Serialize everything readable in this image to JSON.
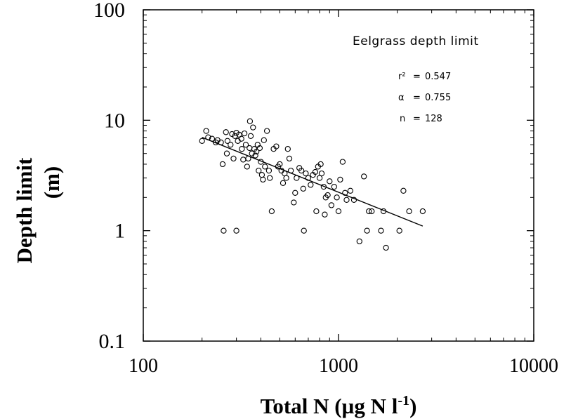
{
  "chart_data": {
    "type": "scatter",
    "xlabel": "Total N (µg N l",
    "xlabel_sup": "-1",
    "xlabel_close": ")",
    "ylabel_line1": "Depth limit",
    "ylabel_line2": "(m)",
    "xscale": "log",
    "yscale": "log",
    "xlim": [
      100,
      10000
    ],
    "ylim": [
      0.1,
      100
    ],
    "xticks": [
      100,
      1000,
      10000
    ],
    "xtick_labels": [
      "100",
      "1000",
      "10000"
    ],
    "yticks": [
      0.1,
      1,
      10,
      100
    ],
    "ytick_labels": [
      "0.1",
      "1",
      "10",
      "100"
    ],
    "grid": false,
    "annotation": {
      "title": "Eelgrass depth limit",
      "r2_label": "r²",
      "r2_value": "0.547",
      "a_label": "α",
      "a_value": "0.755",
      "n_label": "n",
      "n_value": "128"
    },
    "fit_line": {
      "x": [
        200,
        2700
      ],
      "y": [
        7.0,
        1.1
      ]
    },
    "points": [
      [
        200,
        6.5
      ],
      [
        210,
        8.0
      ],
      [
        215,
        7.0
      ],
      [
        225,
        6.8
      ],
      [
        235,
        6.3
      ],
      [
        240,
        6.6
      ],
      [
        250,
        6.3
      ],
      [
        255,
        4.0
      ],
      [
        258,
        1.0
      ],
      [
        265,
        7.8
      ],
      [
        270,
        6.5
      ],
      [
        268,
        5.0
      ],
      [
        280,
        6.0
      ],
      [
        285,
        7.5
      ],
      [
        290,
        4.5
      ],
      [
        295,
        7.2
      ],
      [
        300,
        7.7
      ],
      [
        300,
        1.0
      ],
      [
        305,
        6.5
      ],
      [
        310,
        7.4
      ],
      [
        318,
        6.8
      ],
      [
        320,
        5.5
      ],
      [
        325,
        4.4
      ],
      [
        330,
        7.6
      ],
      [
        335,
        6.0
      ],
      [
        340,
        3.8
      ],
      [
        345,
        4.5
      ],
      [
        350,
        5.6
      ],
      [
        352,
        9.8
      ],
      [
        355,
        7.2
      ],
      [
        360,
        5.0
      ],
      [
        365,
        8.6
      ],
      [
        370,
        5.5
      ],
      [
        375,
        4.8
      ],
      [
        380,
        5.2
      ],
      [
        385,
        6.0
      ],
      [
        390,
        3.5
      ],
      [
        395,
        5.6
      ],
      [
        400,
        4.2
      ],
      [
        405,
        3.2
      ],
      [
        410,
        2.9
      ],
      [
        415,
        6.6
      ],
      [
        420,
        3.8
      ],
      [
        430,
        8.0
      ],
      [
        440,
        3.5
      ],
      [
        445,
        3.0
      ],
      [
        455,
        1.5
      ],
      [
        465,
        5.5
      ],
      [
        480,
        5.8
      ],
      [
        490,
        3.8
      ],
      [
        500,
        4.0
      ],
      [
        510,
        3.5
      ],
      [
        520,
        2.7
      ],
      [
        530,
        3.3
      ],
      [
        540,
        3.0
      ],
      [
        550,
        5.5
      ],
      [
        560,
        4.5
      ],
      [
        570,
        3.5
      ],
      [
        590,
        1.8
      ],
      [
        600,
        2.2
      ],
      [
        610,
        3.0
      ],
      [
        630,
        3.7
      ],
      [
        645,
        3.5
      ],
      [
        660,
        2.4
      ],
      [
        665,
        1.0
      ],
      [
        680,
        3.3
      ],
      [
        700,
        3.0
      ],
      [
        720,
        2.6
      ],
      [
        740,
        3.2
      ],
      [
        760,
        3.4
      ],
      [
        770,
        1.5
      ],
      [
        785,
        3.8
      ],
      [
        800,
        3.0
      ],
      [
        810,
        4.0
      ],
      [
        820,
        3.3
      ],
      [
        840,
        2.5
      ],
      [
        850,
        1.4
      ],
      [
        860,
        2.0
      ],
      [
        880,
        2.1
      ],
      [
        900,
        2.8
      ],
      [
        920,
        1.7
      ],
      [
        950,
        2.5
      ],
      [
        980,
        2.0
      ],
      [
        1000,
        1.5
      ],
      [
        1020,
        2.9
      ],
      [
        1050,
        4.2
      ],
      [
        1080,
        2.2
      ],
      [
        1100,
        1.9
      ],
      [
        1150,
        2.3
      ],
      [
        1200,
        1.9
      ],
      [
        1280,
        0.8
      ],
      [
        1350,
        3.1
      ],
      [
        1400,
        1.0
      ],
      [
        1430,
        1.5
      ],
      [
        1480,
        1.5
      ],
      [
        1650,
        1.0
      ],
      [
        1700,
        1.5
      ],
      [
        1750,
        0.7
      ],
      [
        2050,
        1.0
      ],
      [
        2150,
        2.3
      ],
      [
        2300,
        1.5
      ],
      [
        2700,
        1.5
      ]
    ]
  }
}
